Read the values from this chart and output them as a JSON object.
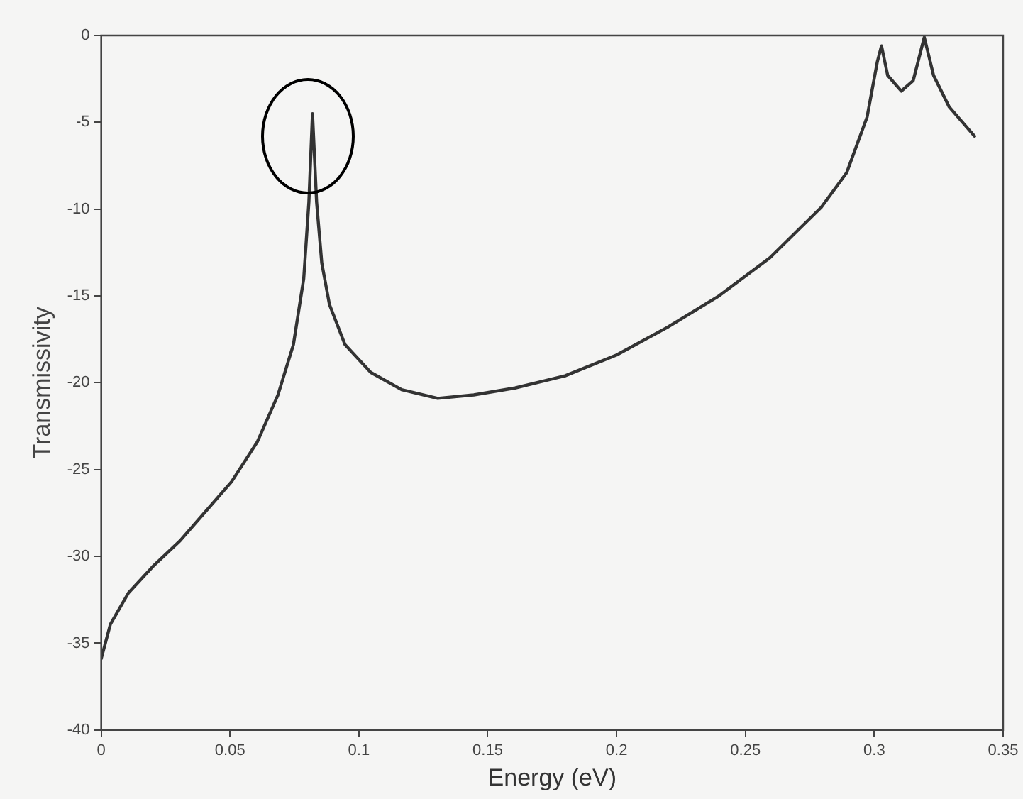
{
  "chart_data": {
    "type": "line",
    "xlabel": "Energy (eV)",
    "ylabel": "Transmissivity",
    "xlim": [
      0,
      0.35
    ],
    "xticks": [
      0,
      0.05,
      0.1,
      0.15,
      0.2,
      0.25,
      0.3,
      0.35
    ],
    "ylim": [
      -40,
      0
    ],
    "yticks": [
      -40,
      -35,
      -30,
      -25,
      -20,
      -15,
      -10,
      -5,
      0
    ],
    "grid": false,
    "legend": false,
    "marker": "none",
    "line_style": "solid",
    "series": [
      {
        "color": "#333333",
        "x": [
          0,
          0.0036,
          0.0106,
          0.0206,
          0.0306,
          0.0406,
          0.0506,
          0.0606,
          0.0686,
          0.0746,
          0.0786,
          0.0806,
          0.082,
          0.0836,
          0.0856,
          0.0886,
          0.0946,
          0.1046,
          0.1166,
          0.1306,
          0.1446,
          0.1606,
          0.18,
          0.2,
          0.2198,
          0.2397,
          0.2595,
          0.2794,
          0.2893,
          0.2972,
          0.3012,
          0.3028,
          0.3052,
          0.3105,
          0.3151,
          0.3194,
          0.323,
          0.329,
          0.3389
        ],
        "values": [
          -35.9,
          -33.9,
          -32.1,
          -30.5,
          -29.1,
          -27.4,
          -25.7,
          -23.4,
          -20.7,
          -17.8,
          -14.0,
          -9.6,
          -4.5,
          -9.6,
          -13.1,
          -15.5,
          -17.8,
          -19.4,
          -20.4,
          -20.9,
          -20.7,
          -20.3,
          -19.6,
          -18.4,
          -16.8,
          -15.0,
          -12.8,
          -9.9,
          -7.9,
          -4.7,
          -1.5,
          -0.6,
          -2.3,
          -3.2,
          -2.6,
          -0.1,
          -2.3,
          -4.1,
          -5.8
        ]
      }
    ]
  }
}
